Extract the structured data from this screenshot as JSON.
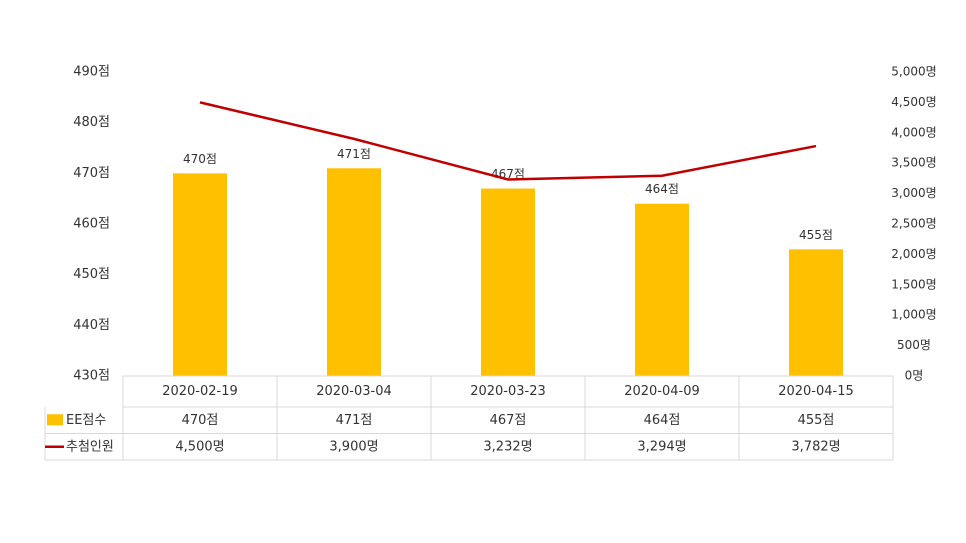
{
  "chart_data": {
    "type": "bar",
    "categories": [
      "2020-02-19",
      "2020-03-04",
      "2020-03-23",
      "2020-04-09",
      "2020-04-15"
    ],
    "series": [
      {
        "name": "EE점수",
        "type": "bar",
        "color": "#ffc000",
        "axis": "y",
        "values": [
          470,
          471,
          467,
          464,
          455
        ],
        "value_labels": [
          "470점",
          "471점",
          "467점",
          "464점",
          "455점"
        ]
      },
      {
        "name": "추첨인원",
        "type": "line",
        "color": "#c00000",
        "axis": "y2",
        "values": [
          4500,
          3900,
          3232,
          3294,
          3782
        ],
        "value_labels": [
          "4,500명",
          "3,900명",
          "3,232명",
          "3,294명",
          "3,782명"
        ]
      }
    ],
    "ylim": [
      430,
      490
    ],
    "yticks": [
      {
        "value": 430,
        "label": "430점"
      },
      {
        "value": 440,
        "label": "440점"
      },
      {
        "value": 450,
        "label": "450점"
      },
      {
        "value": 460,
        "label": "460점"
      },
      {
        "value": 470,
        "label": "470점"
      },
      {
        "value": 480,
        "label": "480점"
      },
      {
        "value": 490,
        "label": "490점"
      }
    ],
    "y2lim": [
      0,
      5000
    ],
    "y2ticks": [
      {
        "value": 0,
        "label": "0명"
      },
      {
        "value": 500,
        "label": "500명"
      },
      {
        "value": 1000,
        "label": "1,000명"
      },
      {
        "value": 1500,
        "label": "1,500명"
      },
      {
        "value": 2000,
        "label": "2,000명"
      },
      {
        "value": 2500,
        "label": "2,500명"
      },
      {
        "value": 3000,
        "label": "3,000명"
      },
      {
        "value": 3500,
        "label": "3,500명"
      },
      {
        "value": 4000,
        "label": "4,000명"
      },
      {
        "value": 4500,
        "label": "4,500명"
      },
      {
        "value": 5000,
        "label": "5,000명"
      }
    ],
    "grid": false,
    "data_table": true
  }
}
